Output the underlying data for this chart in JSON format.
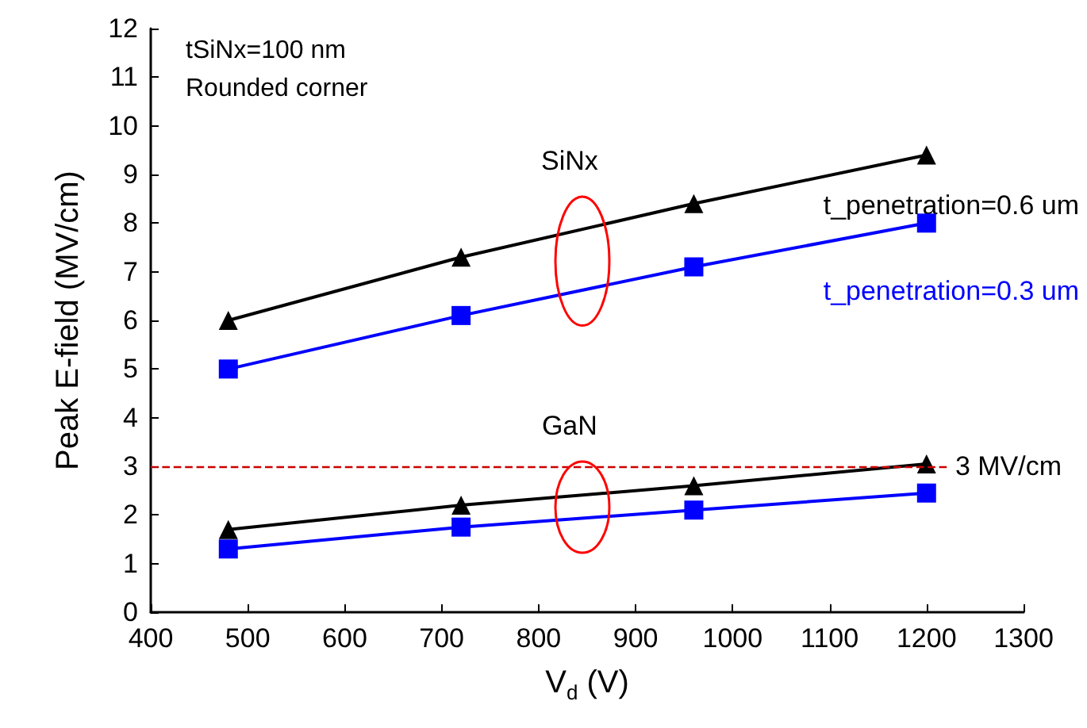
{
  "chart_data": {
    "type": "line",
    "xlabel": "V$_{d}$ (V)",
    "ylabel": "Peak E-field (MV/cm)",
    "x": [
      480,
      720,
      960,
      1200
    ],
    "series": [
      {
        "name": "t_penetration=0.6 um",
        "color": "#000000",
        "marker": "triangle",
        "values": [
          6.0,
          7.3,
          8.4,
          9.4
        ]
      },
      {
        "name": "t_penetration=0.3 um",
        "color": "#0000ff",
        "marker": "square",
        "values": [
          5.0,
          6.1,
          7.1,
          8.0
        ]
      },
      {
        "color": "#000000",
        "marker": "triangle",
        "values": [
          1.7,
          2.2,
          2.6,
          3.05
        ]
      },
      {
        "color": "#0000ff",
        "marker": "square",
        "values": [
          1.3,
          1.75,
          2.1,
          2.45
        ]
      }
    ],
    "xlim": [
      400,
      1300
    ],
    "xticks": [
      400,
      500,
      600,
      700,
      800,
      900,
      1000,
      1100,
      1200,
      1300
    ],
    "ylim": [
      0,
      12
    ],
    "yticks": [
      0,
      1,
      2,
      3,
      4,
      5,
      6,
      7,
      8,
      9,
      10,
      11,
      12
    ],
    "ref_lines": [
      {
        "axis": "y",
        "value": 3,
        "label": "3 MV/cm",
        "color": "#cc0000",
        "line_style": "dashed"
      }
    ],
    "annotations": [
      "tSiNx=100 nm",
      "Rounded corner",
      "SiNx",
      "GaN"
    ],
    "grid": false,
    "legend": false,
    "line_style": "solid"
  }
}
